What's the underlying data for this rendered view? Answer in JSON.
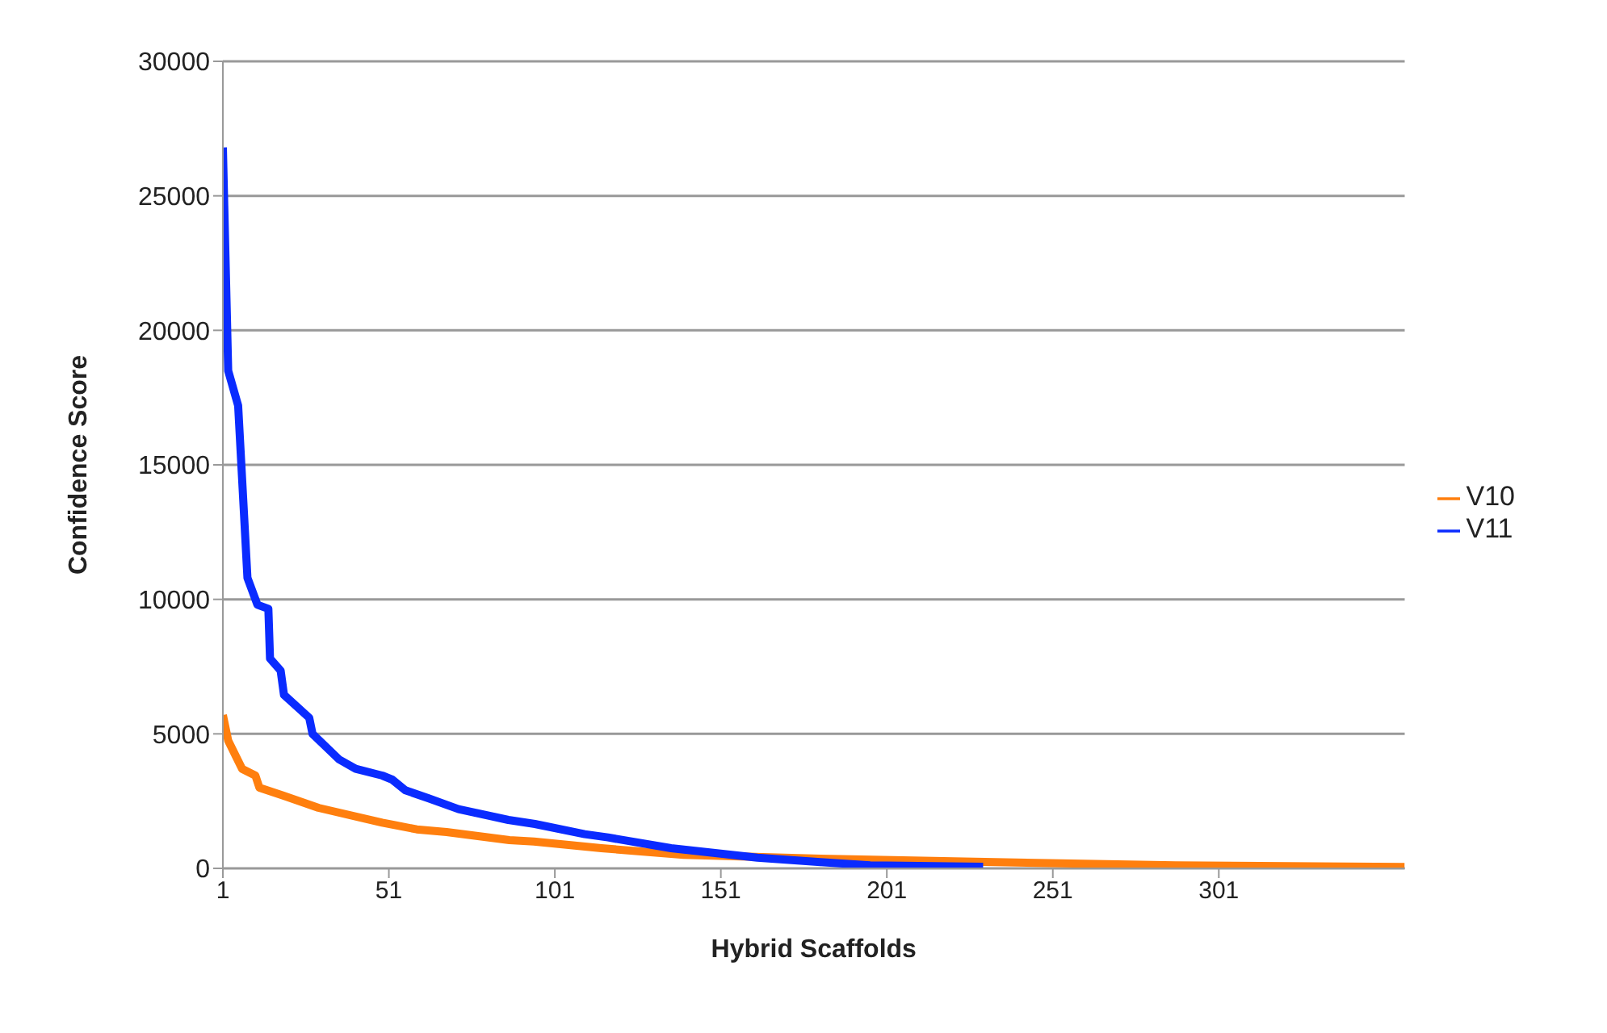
{
  "chart_data": {
    "type": "line",
    "xlabel": "Hybrid Scaffolds",
    "ylabel": "Confidence Score",
    "xlim": [
      1,
      357
    ],
    "xticks": [
      1,
      51,
      101,
      151,
      201,
      251,
      301
    ],
    "ylim": [
      0,
      30000
    ],
    "yticks": [
      0,
      5000,
      10000,
      15000,
      20000,
      25000,
      30000
    ],
    "grid": "y",
    "legend": "right",
    "marker": "none",
    "line_style": "solid",
    "series": [
      {
        "name": "V10",
        "color": "#ff7f0e",
        "x": [
          1,
          2.6,
          6.8,
          10.8,
          12,
          19.3,
          29.8,
          49,
          59.4,
          68.4,
          87.3,
          94.7,
          115,
          139.8,
          181,
          233.6,
          288,
          357
        ],
        "values": [
          5700,
          4750,
          3700,
          3450,
          3000,
          2700,
          2250,
          1700,
          1450,
          1350,
          1050,
          1000,
          750,
          500,
          360,
          230,
          115,
          50
        ]
      },
      {
        "name": "V11",
        "color": "#0a2bff",
        "x": [
          1,
          2.6,
          5.6,
          8.4,
          11.4,
          14.7,
          15.2,
          18.4,
          19.4,
          27,
          28,
          36,
          41,
          49,
          52,
          56,
          63,
          72,
          87,
          95,
          110,
          117,
          136,
          162,
          181,
          196,
          230
        ],
        "values": [
          26800,
          18500,
          17200,
          10800,
          9800,
          9650,
          7800,
          7350,
          6450,
          5600,
          5000,
          4050,
          3700,
          3450,
          3300,
          2900,
          2600,
          2200,
          1800,
          1650,
          1270,
          1150,
          750,
          400,
          230,
          115,
          60
        ]
      }
    ]
  }
}
